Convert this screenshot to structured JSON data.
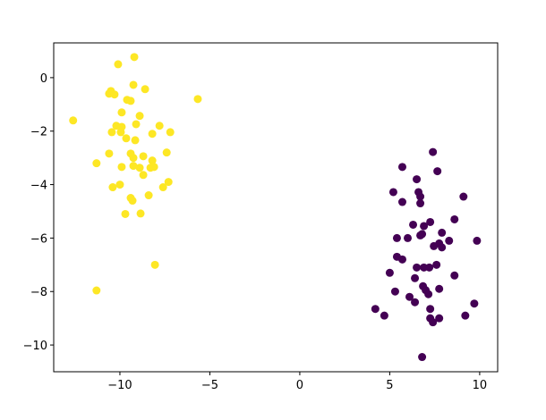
{
  "chart_data": {
    "type": "scatter",
    "series": [
      {
        "color": "#fde725",
        "x": [
          -10.1,
          -9.2,
          -9.25,
          -8.6,
          -5.67,
          -10.5,
          -10.6,
          -10.3,
          -9.6,
          -9.4,
          -12.6,
          -9.9,
          -8.9,
          -10.2,
          -9.9,
          -9.1,
          -7.8,
          -10.45,
          -9.95,
          -8.2,
          -7.2,
          -9.65,
          -9.15,
          -10.6,
          -9.4,
          -9.25,
          -8.7,
          -8.2,
          -7.4,
          -11.3,
          -9.9,
          -9.25,
          -8.9,
          -8.3,
          -8.1,
          -8.7,
          -10.0,
          -10.4,
          -7.3,
          -7.6,
          -8.4,
          -9.4,
          -9.3,
          -8.85,
          -9.7,
          -8.05,
          -11.3
        ],
        "values": [
          0.5,
          0.77,
          -0.27,
          -0.43,
          -0.8,
          -0.5,
          -0.6,
          -0.63,
          -0.83,
          -0.87,
          -1.6,
          -1.3,
          -1.43,
          -1.8,
          -1.84,
          -1.74,
          -1.8,
          -2.04,
          -2.04,
          -2.1,
          -2.04,
          -2.27,
          -2.34,
          -2.84,
          -2.84,
          -3.0,
          -2.94,
          -3.1,
          -2.8,
          -3.2,
          -3.34,
          -3.3,
          -3.37,
          -3.37,
          -3.34,
          -3.64,
          -4.0,
          -4.1,
          -3.9,
          -4.1,
          -4.4,
          -4.5,
          -4.6,
          -5.08,
          -5.1,
          -7.0,
          -7.96
        ]
      },
      {
        "color": "#440154",
        "x": [
          7.4,
          5.7,
          7.65,
          6.5,
          5.2,
          6.6,
          9.1,
          6.7,
          5.7,
          6.7,
          7.25,
          8.6,
          6.3,
          6.9,
          7.9,
          6.8,
          6.7,
          5.4,
          6.0,
          9.85,
          8.3,
          7.75,
          7.45,
          7.9,
          5.4,
          5.7,
          7.6,
          6.5,
          6.9,
          7.2,
          5.0,
          8.6,
          6.4,
          6.85,
          7.0,
          7.75,
          7.15,
          5.3,
          6.1,
          6.4,
          9.7,
          7.25,
          4.2,
          4.7,
          9.2,
          7.25,
          7.75,
          7.4,
          6.8
        ],
        "values": [
          -2.78,
          -3.34,
          -3.5,
          -3.8,
          -4.28,
          -4.28,
          -4.45,
          -4.45,
          -4.65,
          -4.7,
          -5.4,
          -5.3,
          -5.5,
          -5.55,
          -5.8,
          -5.85,
          -5.9,
          -6.0,
          -6.0,
          -6.1,
          -6.1,
          -6.2,
          -6.3,
          -6.35,
          -6.7,
          -6.8,
          -7.0,
          -7.1,
          -7.1,
          -7.1,
          -7.3,
          -7.4,
          -7.5,
          -7.8,
          -7.95,
          -7.9,
          -8.1,
          -8.0,
          -8.2,
          -8.4,
          -8.45,
          -8.65,
          -8.65,
          -8.9,
          -8.9,
          -9.0,
          -9.0,
          -9.15,
          -10.45
        ]
      }
    ],
    "xlim": [
      -13.68,
      11.0
    ],
    "ylim": [
      -11.0,
      1.3
    ],
    "xticks": [
      {
        "value": -10,
        "label": "−10"
      },
      {
        "value": -5,
        "label": "−5"
      },
      0,
      5,
      10
    ],
    "yticks": [
      0,
      {
        "value": -2,
        "label": "−2"
      },
      {
        "value": -4,
        "label": "−4"
      },
      {
        "value": -6,
        "label": "−6"
      },
      {
        "value": -8,
        "label": "−8"
      },
      {
        "value": -10,
        "label": "−10"
      }
    ],
    "grid": false
  }
}
